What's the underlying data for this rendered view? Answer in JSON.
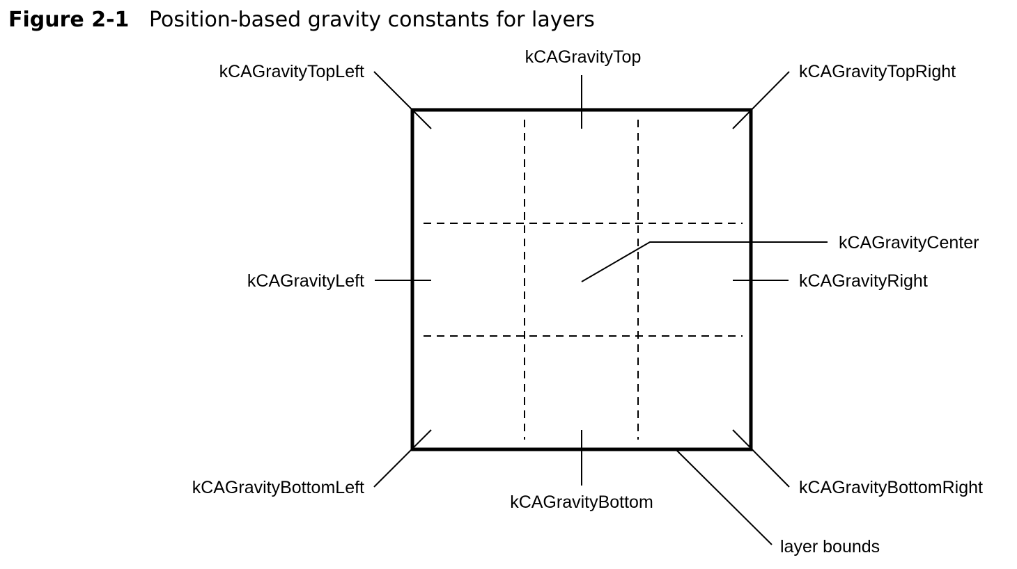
{
  "figure": {
    "number": "Figure 2-1",
    "title": "Position-based gravity constants for layers"
  },
  "labels": {
    "top_left": "kCAGravityTopLeft",
    "top": "kCAGravityTop",
    "top_right": "kCAGravityTopRight",
    "center": "kCAGravityCenter",
    "left": "kCAGravityLeft",
    "right": "kCAGravityRight",
    "bottom_left": "kCAGravityBottomLeft",
    "bottom": "kCAGravityBottom",
    "bottom_right": "kCAGravityBottomRight",
    "layer_bounds": "layer bounds"
  }
}
